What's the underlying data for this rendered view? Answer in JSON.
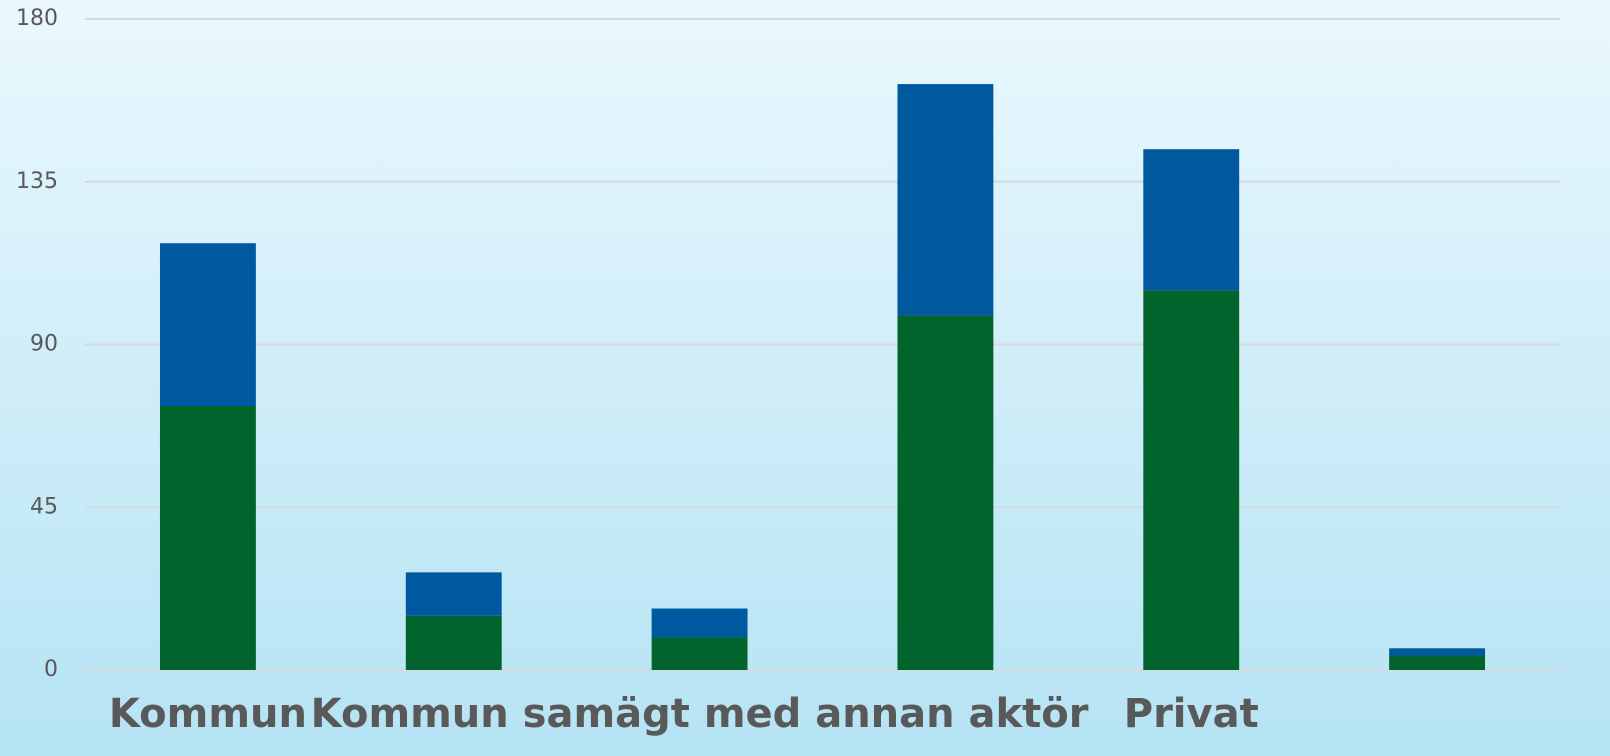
{
  "chart_data": {
    "type": "stacked_bar",
    "categories": [
      "Kommun",
      null,
      "Kommun samägt med annan aktör",
      null,
      "Privat",
      null
    ],
    "series": [
      {
        "color": "#00642c",
        "values": [
          73,
          15,
          9,
          98,
          105,
          4
        ]
      },
      {
        "color": "#00589e",
        "values": [
          45,
          12,
          8,
          64,
          39,
          2
        ]
      }
    ],
    "ylim": [
      0,
      180
    ],
    "yticks": [
      0,
      45,
      90,
      135,
      180
    ],
    "grid": true
  }
}
